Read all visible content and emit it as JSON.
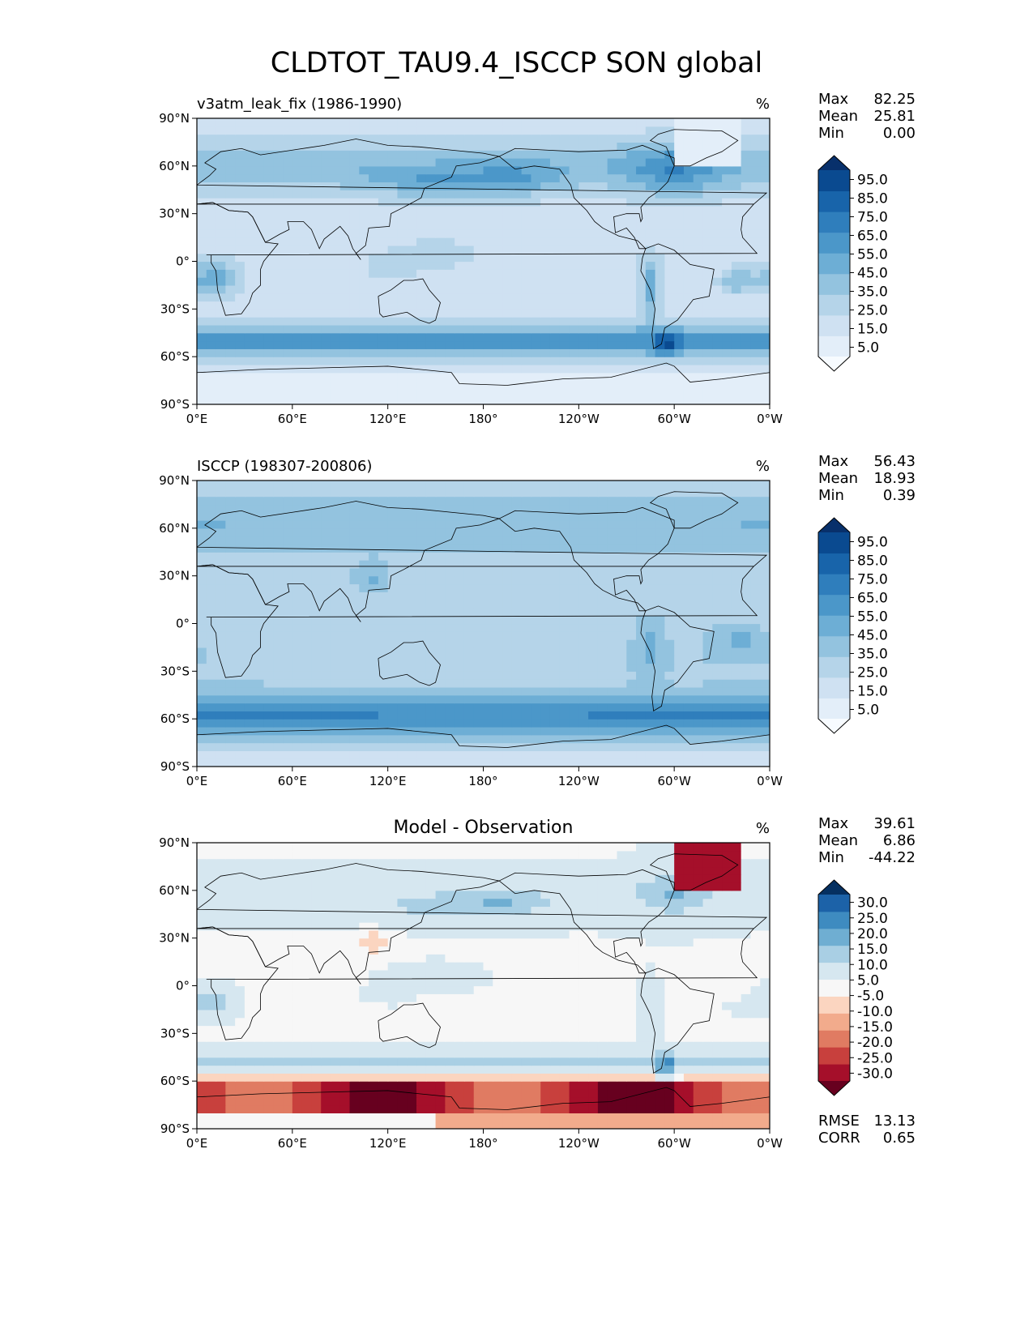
{
  "figure": {
    "title": "CLDTOT_TAU9.4_ISCCP SON global"
  },
  "chart_data": [
    {
      "type": "heatmap",
      "panel": "test",
      "title_left": "v3atm_leak_fix (1986-1990)",
      "title_center": "",
      "units": "%",
      "x_tick_labels": [
        "0°E",
        "60°E",
        "120°E",
        "180°",
        "120°W",
        "60°W",
        "0°W"
      ],
      "y_tick_labels": [
        "90°N",
        "60°N",
        "30°N",
        "0°",
        "30°S",
        "60°S",
        "90°S"
      ],
      "xlim": [
        0,
        360
      ],
      "ylim": [
        -90,
        90
      ],
      "colorbar_levels": [
        0,
        5,
        10,
        15,
        20,
        25,
        30,
        35,
        40,
        45,
        50,
        55,
        60,
        65,
        70,
        75,
        80,
        85,
        90,
        95,
        100
      ],
      "colorbar_tick_labels": [
        "5.0",
        "15.0",
        "25.0",
        "35.0",
        "45.0",
        "55.0",
        "65.0",
        "75.0",
        "85.0",
        "95.0"
      ],
      "colorbar_extend": "both",
      "colormap": [
        "#f7fbff",
        "#e3eef9",
        "#cfe1f2",
        "#b5d4e9",
        "#93c3df",
        "#6daed5",
        "#4b97c9",
        "#2f7ebc",
        "#1864aa",
        "#0a4a90",
        "#08306b"
      ],
      "stats": [
        {
          "label": "Max",
          "value": "82.25"
        },
        {
          "label": "Mean",
          "value": "25.81"
        },
        {
          "label": "Min",
          "value": "0.00"
        }
      ]
    },
    {
      "type": "heatmap",
      "panel": "reference",
      "title_left": "ISCCP (198307-200806)",
      "title_center": "",
      "units": "%",
      "x_tick_labels": [
        "0°E",
        "60°E",
        "120°E",
        "180°",
        "120°W",
        "60°W",
        "0°W"
      ],
      "y_tick_labels": [
        "90°N",
        "60°N",
        "30°N",
        "0°",
        "30°S",
        "60°S",
        "90°S"
      ],
      "xlim": [
        0,
        360
      ],
      "ylim": [
        -90,
        90
      ],
      "colorbar_levels": [
        0,
        5,
        10,
        15,
        20,
        25,
        30,
        35,
        40,
        45,
        50,
        55,
        60,
        65,
        70,
        75,
        80,
        85,
        90,
        95,
        100
      ],
      "colorbar_tick_labels": [
        "5.0",
        "15.0",
        "25.0",
        "35.0",
        "45.0",
        "55.0",
        "65.0",
        "75.0",
        "85.0",
        "95.0"
      ],
      "colorbar_extend": "both",
      "colormap": [
        "#f7fbff",
        "#e3eef9",
        "#cfe1f2",
        "#b5d4e9",
        "#93c3df",
        "#6daed5",
        "#4b97c9",
        "#2f7ebc",
        "#1864aa",
        "#0a4a90",
        "#08306b"
      ],
      "stats": [
        {
          "label": "Max",
          "value": "56.43"
        },
        {
          "label": "Mean",
          "value": "18.93"
        },
        {
          "label": "Min",
          "value": "0.39"
        }
      ]
    },
    {
      "type": "heatmap",
      "panel": "difference",
      "title_left": "",
      "title_center": "Model - Observation",
      "units": "%",
      "x_tick_labels": [
        "0°E",
        "60°E",
        "120°E",
        "180°",
        "120°W",
        "60°W",
        "0°W"
      ],
      "y_tick_labels": [
        "90°N",
        "60°N",
        "30°N",
        "0°",
        "30°S",
        "60°S",
        "90°S"
      ],
      "xlim": [
        0,
        360
      ],
      "ylim": [
        -90,
        90
      ],
      "colorbar_levels": [
        -35,
        -30,
        -25,
        -20,
        -15,
        -10,
        -5,
        5,
        10,
        15,
        20,
        25,
        30,
        35
      ],
      "colorbar_tick_labels": [
        "-30.0",
        "-25.0",
        "-20.0",
        "-15.0",
        "-10.0",
        "-5.0",
        "5.0",
        "10.0",
        "15.0",
        "20.0",
        "25.0",
        "30.0"
      ],
      "colorbar_extend": "both",
      "colormap": [
        "#67001f",
        "#a50f2a",
        "#c8403d",
        "#e07b62",
        "#f2ab8c",
        "#fbd5c0",
        "#f7f7f7",
        "#d6e7f0",
        "#a9cfe4",
        "#6faed2",
        "#3e8bc0",
        "#1c62a8",
        "#053061"
      ],
      "stats": [
        {
          "label": "Max",
          "value": "39.61"
        },
        {
          "label": "Mean",
          "value": "6.86"
        },
        {
          "label": "Min",
          "value": "-44.22"
        }
      ],
      "metrics": [
        {
          "label": "RMSE",
          "value": "13.13"
        },
        {
          "label": "CORR",
          "value": "0.65"
        }
      ]
    }
  ]
}
